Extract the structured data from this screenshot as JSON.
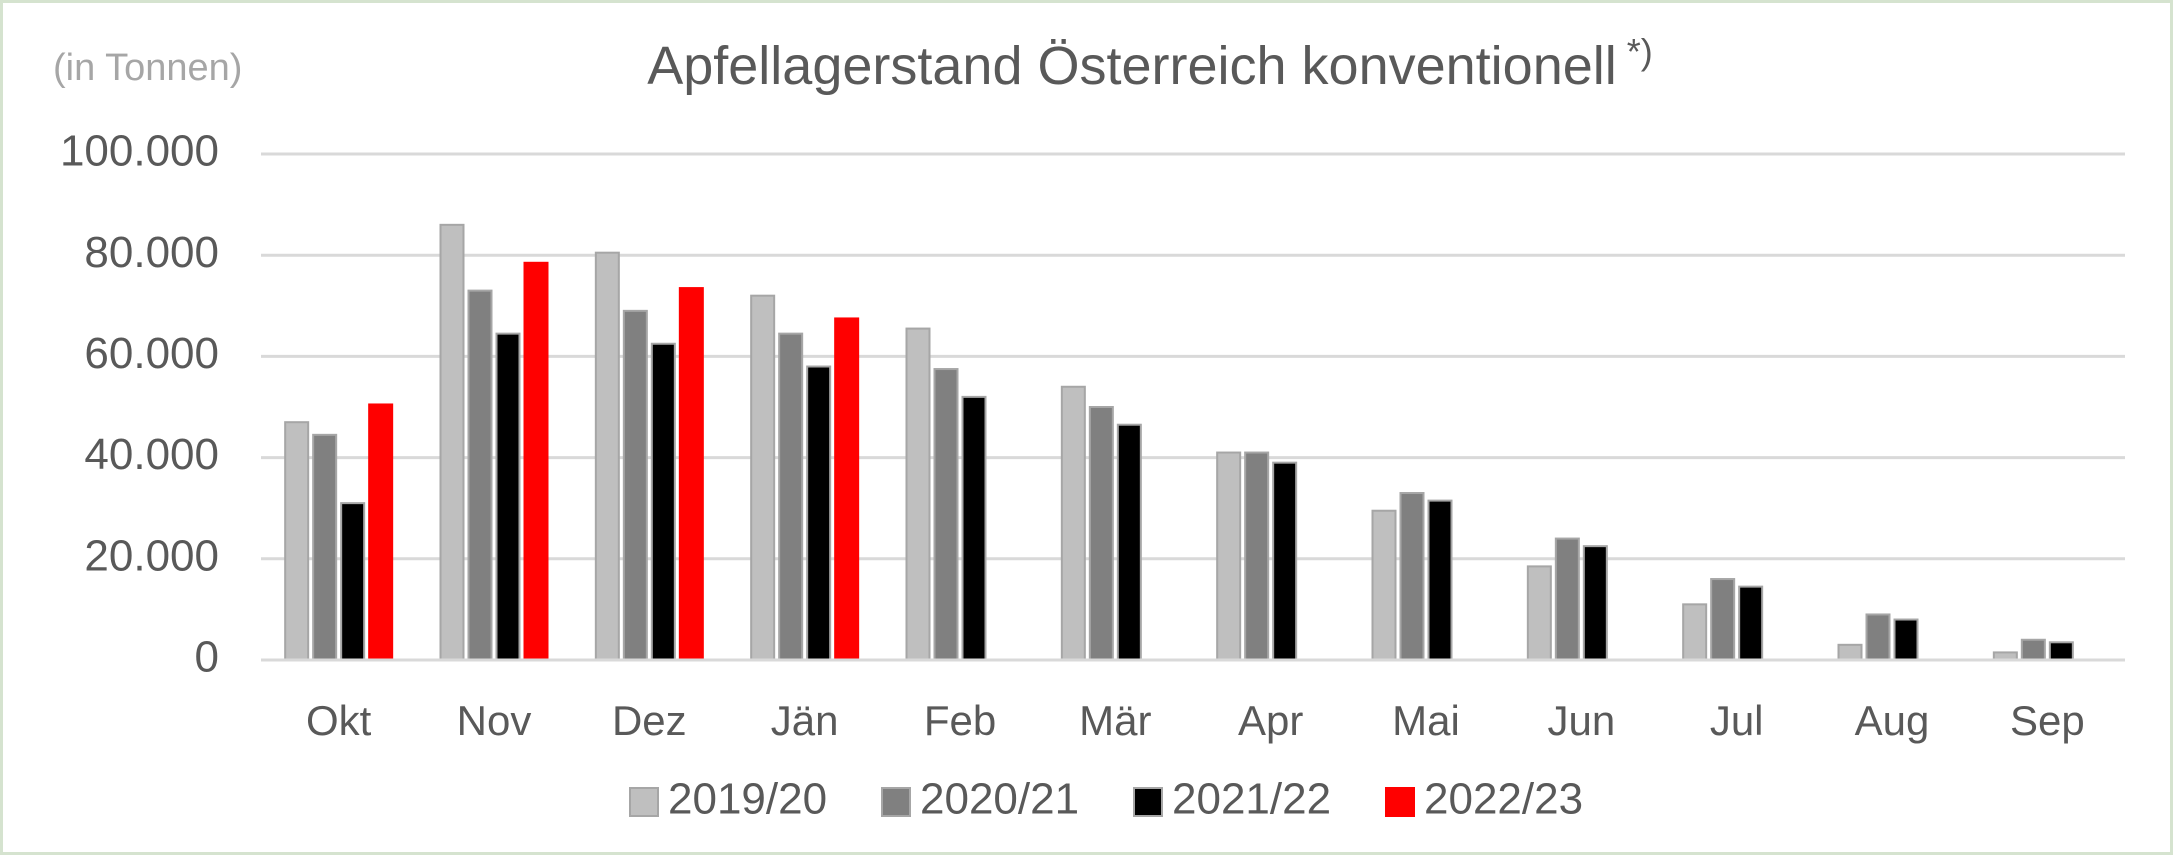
{
  "chart_data": {
    "type": "bar",
    "title": "Apfellagerstand Österreich konventionell",
    "title_note": "*)",
    "y_axis_label": "(in Tonnen)",
    "categories": [
      "Okt",
      "Nov",
      "Dez",
      "Jän",
      "Feb",
      "Mär",
      "Apr",
      "Mai",
      "Jun",
      "Jul",
      "Aug",
      "Sep"
    ],
    "series": [
      {
        "name": "2019/20",
        "color": "#bfbfbf",
        "values": [
          47000,
          86000,
          80500,
          72000,
          65500,
          54000,
          41000,
          29500,
          18500,
          11000,
          3000,
          1500
        ]
      },
      {
        "name": "2020/21",
        "color": "#808080",
        "values": [
          44500,
          73000,
          69000,
          64500,
          57500,
          50000,
          41000,
          33000,
          24000,
          16000,
          9000,
          4000
        ]
      },
      {
        "name": "2021/22",
        "color": "#000000",
        "values": [
          31000,
          64500,
          62500,
          58000,
          52000,
          46500,
          39000,
          31500,
          22500,
          14500,
          8000,
          3500
        ]
      },
      {
        "name": "2022/23",
        "color": "#ff0000",
        "values": [
          50500,
          78500,
          73500,
          67500,
          null,
          null,
          null,
          null,
          null,
          null,
          null,
          null
        ]
      }
    ],
    "ylim": [
      0,
      100000
    ],
    "yticks": [
      0,
      {
        "value": 20000,
        "label": "20.000"
      },
      {
        "value": 40000,
        "label": "40.000"
      },
      {
        "value": 60000,
        "label": "60.000"
      },
      {
        "value": 80000,
        "label": "80.000"
      },
      {
        "value": 100000,
        "label": "100.000"
      }
    ],
    "grid": true,
    "legend": "bottom"
  }
}
